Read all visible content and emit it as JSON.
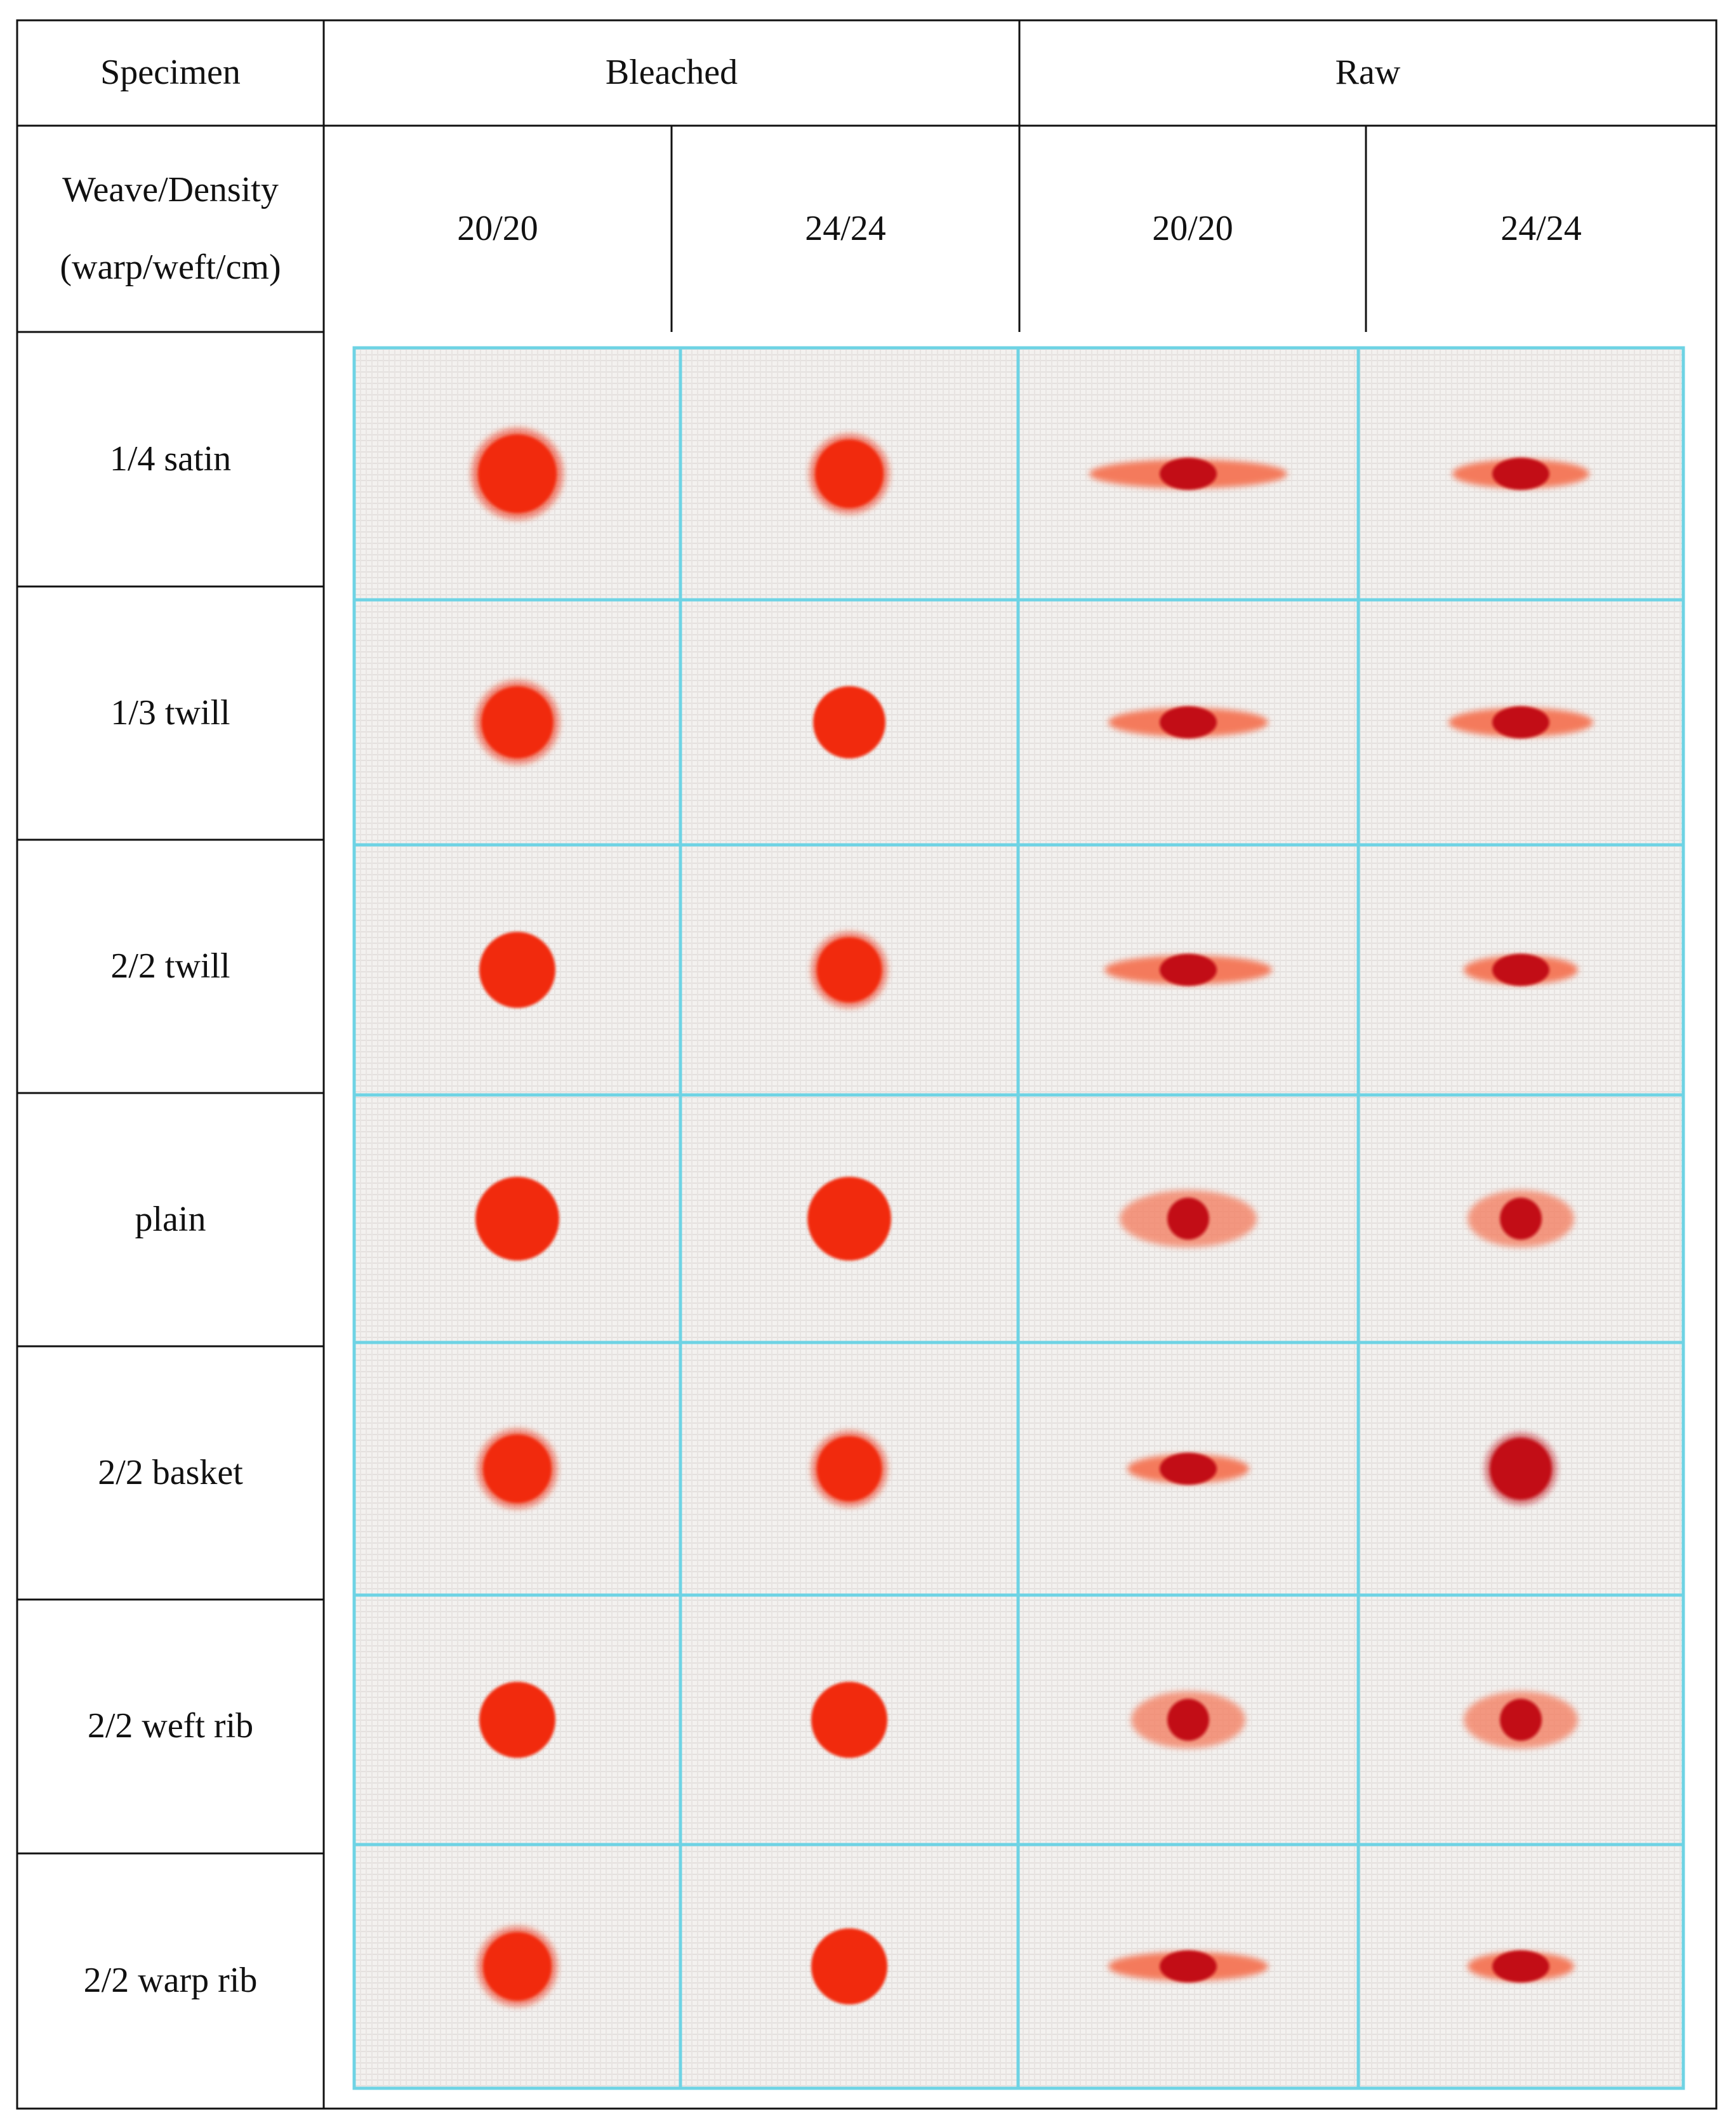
{
  "header": {
    "specimen_label": "Specimen",
    "group_bleached": "Bleached",
    "group_raw": "Raw",
    "weave_label_line1": "Weave/Density",
    "weave_label_line2": "(warp/weft/cm)",
    "density_columns": [
      "20/20",
      "24/24",
      "20/20",
      "24/24"
    ]
  },
  "rows": [
    {
      "weave": "1/4 satin"
    },
    {
      "weave": "1/3 twill"
    },
    {
      "weave": "2/2 twill"
    },
    {
      "weave": "plain"
    },
    {
      "weave": "2/2 basket"
    },
    {
      "weave": "2/2 weft rib"
    },
    {
      "weave": "2/2 warp rib"
    }
  ],
  "photos": {
    "frame_color": "#6ed3e4",
    "fabric_color": "#f1eeec",
    "stain_bleached_color": "#f12a0a",
    "stain_raw_color": "#c20d12",
    "stain_halo_color": "#f47a5c",
    "stains": [
      [
        {
          "shape": "round-fuzzy",
          "spread": 1.15
        },
        {
          "shape": "round-fuzzy",
          "spread": 1.0
        },
        {
          "shape": "elongated",
          "spread": 2.6
        },
        {
          "shape": "elongated",
          "spread": 1.8
        }
      ],
      [
        {
          "shape": "round-fuzzy",
          "spread": 1.05
        },
        {
          "shape": "round",
          "spread": 0.95
        },
        {
          "shape": "elongated",
          "spread": 2.1
        },
        {
          "shape": "elongated",
          "spread": 1.9
        }
      ],
      [
        {
          "shape": "round",
          "spread": 1.0
        },
        {
          "shape": "round-fuzzy",
          "spread": 0.95
        },
        {
          "shape": "elongated",
          "spread": 2.2
        },
        {
          "shape": "elongated",
          "spread": 1.5
        }
      ],
      [
        {
          "shape": "round",
          "spread": 1.1
        },
        {
          "shape": "round",
          "spread": 1.1
        },
        {
          "shape": "halo",
          "spread": 1.8
        },
        {
          "shape": "halo",
          "spread": 1.4
        }
      ],
      [
        {
          "shape": "round-fuzzy",
          "spread": 1.0
        },
        {
          "shape": "round-fuzzy",
          "spread": 0.95
        },
        {
          "shape": "elongated",
          "spread": 1.6
        },
        {
          "shape": "round-fuzzy",
          "spread": 0.9
        }
      ],
      [
        {
          "shape": "round",
          "spread": 1.0
        },
        {
          "shape": "round",
          "spread": 1.0
        },
        {
          "shape": "halo",
          "spread": 1.5
        },
        {
          "shape": "halo",
          "spread": 1.5
        }
      ],
      [
        {
          "shape": "round-fuzzy",
          "spread": 1.0
        },
        {
          "shape": "round",
          "spread": 1.0
        },
        {
          "shape": "elongated",
          "spread": 2.1
        },
        {
          "shape": "elongated",
          "spread": 1.4
        }
      ]
    ]
  }
}
